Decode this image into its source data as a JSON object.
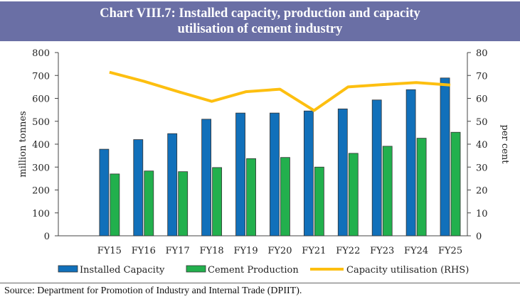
{
  "title_line1": "Chart VIII.7: Installed capacity, production and capacity",
  "title_line2": "utilisation of cement industry",
  "source": "Source: Department for Promotion of Industry and Internal Trade (DPIIT).",
  "chart_data": {
    "type": "bar",
    "categories": [
      "FY15",
      "FY16",
      "FY17",
      "FY18",
      "FY19",
      "FY20",
      "FY21",
      "FY22",
      "FY23",
      "FY24",
      "FY25"
    ],
    "series": [
      {
        "name": "Installed Capacity",
        "kind": "bar",
        "axis": "left",
        "color": "#1170ba",
        "values": [
          378,
          420,
          446,
          509,
          536,
          536,
          545,
          554,
          593,
          638,
          689
        ]
      },
      {
        "name": "Cement Production",
        "kind": "bar",
        "axis": "left",
        "color": "#22b04d",
        "values": [
          270,
          283,
          280,
          298,
          337,
          342,
          300,
          360,
          391,
          426,
          452
        ]
      },
      {
        "name": "Capacity utilisation (RHS)",
        "kind": "line",
        "axis": "right",
        "color": "#fdbf10",
        "values": [
          71.4,
          67.5,
          63,
          58.7,
          62.9,
          64.0,
          54.7,
          65.0,
          66.0,
          66.9,
          65.8
        ]
      }
    ],
    "ylabel": "million tonnes",
    "ylabel_right": "per cent",
    "ylim": [
      0,
      800
    ],
    "ylim_right": [
      0,
      80
    ],
    "yticks": [
      0,
      100,
      200,
      300,
      400,
      500,
      600,
      700,
      800
    ],
    "yticks_right": [
      0,
      10,
      20,
      30,
      40,
      50,
      60,
      70,
      80
    ],
    "grid": false,
    "legend": "bottom"
  }
}
